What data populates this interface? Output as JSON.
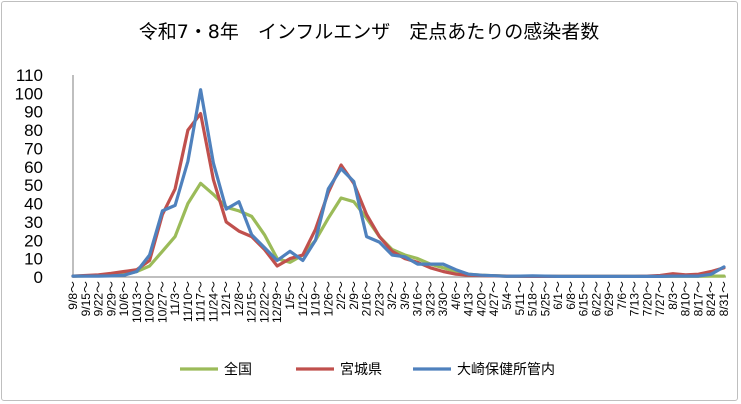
{
  "chart_data": {
    "type": "line",
    "title": "令和7・8年　インフルエンザ　定点あたりの感染者数",
    "xlabel": "",
    "ylabel": "",
    "ylim": [
      0,
      110
    ],
    "yticks": [
      0,
      10,
      20,
      30,
      40,
      50,
      60,
      70,
      80,
      90,
      100,
      110
    ],
    "grid": false,
    "legend_position": "bottom",
    "categories": [
      "9/8～",
      "9/15～",
      "9/22～",
      "9/29～",
      "10/6～",
      "10/13～",
      "10/20～",
      "10/27～",
      "11/3～",
      "11/10～",
      "11/17～",
      "11/24～",
      "12/1～",
      "12/8～",
      "12/15～",
      "12/22～",
      "12/29～",
      "1/5～",
      "1/12～",
      "1/19～",
      "1/26～",
      "2/2～",
      "2/9～",
      "2/16～",
      "2/23～",
      "3/2～",
      "3/9～",
      "3/16～",
      "3/23～",
      "3/30～",
      "4/6～",
      "4/13～",
      "4/20～",
      "4/27～",
      "5/4～",
      "5/11～",
      "5/18～",
      "5/25～",
      "6/1～",
      "6/8～",
      "6/15～",
      "6/22～",
      "6/29～",
      "7/6～",
      "7/13～",
      "7/20～",
      "7/27～",
      "8/3～",
      "8/10～",
      "8/17～",
      "8/24～",
      "8/31～"
    ],
    "series": [
      {
        "name": "全国",
        "color": "#9bbb59",
        "values": [
          0.5,
          0.6,
          0.7,
          0.9,
          1.5,
          3,
          6,
          14,
          22,
          40,
          51,
          45,
          38,
          36,
          33,
          23,
          10,
          8,
          12,
          20,
          32,
          43,
          41,
          32,
          22,
          15,
          12,
          10,
          7,
          5,
          3,
          1.5,
          1,
          0.7,
          0.5,
          0.4,
          0.4,
          0.3,
          0.3,
          0.3,
          0.3,
          0.3,
          0.3,
          0.3,
          0.3,
          0.3,
          0.3,
          0.4,
          0.4,
          0.4,
          0.5,
          0.5
        ]
      },
      {
        "name": "宮城県",
        "color": "#c0504d",
        "values": [
          0.5,
          0.8,
          1.2,
          2,
          3,
          4,
          9,
          34,
          48,
          80,
          89,
          53,
          30,
          25,
          22,
          15,
          6,
          10,
          12,
          26,
          46,
          61,
          51,
          34,
          22,
          14,
          10,
          8,
          5,
          3,
          1.5,
          1,
          0.8,
          0.6,
          0.5,
          0.4,
          0.3,
          0.3,
          0.3,
          0.3,
          0.3,
          0.3,
          0.3,
          0.3,
          0.3,
          0.5,
          0.8,
          1.8,
          1.2,
          1.5,
          3,
          5
        ]
      },
      {
        "name": "大崎保健所管内",
        "color": "#4f81bd",
        "values": [
          0.5,
          0.5,
          0.5,
          0.6,
          1,
          3,
          12,
          36,
          39,
          63,
          102,
          62,
          37,
          41,
          23,
          16,
          9,
          14,
          9,
          20,
          48,
          59,
          52,
          22,
          19,
          12,
          11,
          7,
          7,
          7,
          4,
          1.5,
          1,
          0.7,
          0.4,
          0.5,
          0.6,
          0.5,
          0.3,
          0.3,
          0.3,
          0.3,
          0.3,
          0.3,
          0.3,
          0.3,
          0.3,
          0.5,
          0.5,
          0.5,
          1.5,
          5.5
        ]
      }
    ]
  }
}
